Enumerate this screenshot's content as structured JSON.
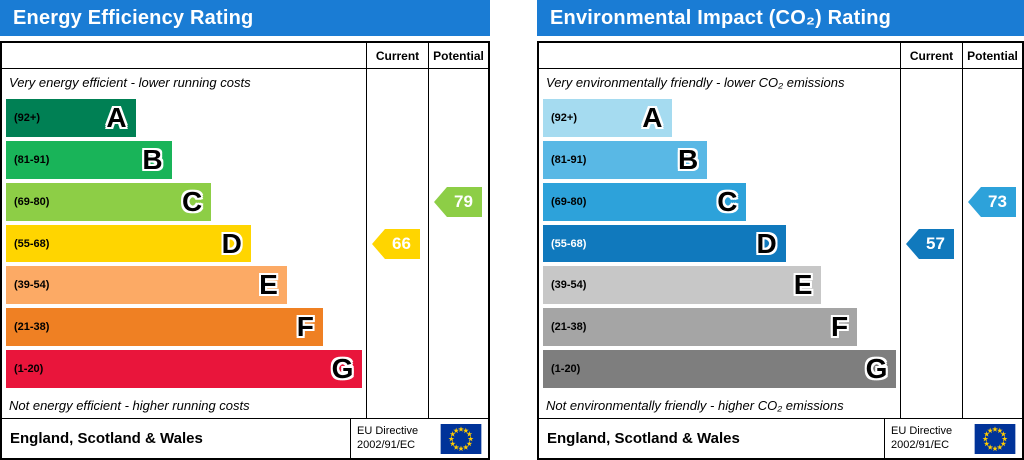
{
  "chart_data": [
    {
      "type": "bar",
      "title": "Energy Efficiency Rating",
      "categories": [
        "A (92+)",
        "B (81-91)",
        "C (69-80)",
        "D (55-68)",
        "E (39-54)",
        "F (21-38)",
        "G (1-20)"
      ],
      "series": [
        {
          "name": "Current",
          "value": 66,
          "band": "D"
        },
        {
          "name": "Potential",
          "value": 79,
          "band": "C"
        }
      ],
      "scale": [
        1,
        100
      ],
      "top_note": "Very energy efficient - lower running costs",
      "bottom_note": "Not energy efficient - higher running costs"
    },
    {
      "type": "bar",
      "title": "Environmental Impact (CO₂) Rating",
      "categories": [
        "A (92+)",
        "B (81-91)",
        "C (69-80)",
        "D (55-68)",
        "E (39-54)",
        "F (21-38)",
        "G (1-20)"
      ],
      "series": [
        {
          "name": "Current",
          "value": 57,
          "band": "D"
        },
        {
          "name": "Potential",
          "value": 73,
          "band": "C"
        }
      ],
      "scale": [
        1,
        100
      ],
      "top_note": "Very environmentally friendly - lower CO₂ emissions",
      "bottom_note": "Not environmentally friendly - higher CO₂ emissions"
    }
  ],
  "charts": [
    {
      "title": "Energy Efficiency Rating",
      "header_bg": "#1a7cd4",
      "columns": {
        "current": "Current",
        "potential": "Potential"
      },
      "top_note": "Very energy efficient - lower running costs",
      "bottom_note": "Not energy efficient - higher running costs",
      "bands": [
        {
          "letter": "A",
          "range": "(92+)",
          "color": "#008054",
          "width_pct": 36
        },
        {
          "letter": "B",
          "range": "(81-91)",
          "color": "#19b459",
          "width_pct": 46
        },
        {
          "letter": "C",
          "range": "(69-80)",
          "color": "#8dce46",
          "width_pct": 57
        },
        {
          "letter": "D",
          "range": "(55-68)",
          "color": "#ffd500",
          "width_pct": 68
        },
        {
          "letter": "E",
          "range": "(39-54)",
          "color": "#fcaa65",
          "width_pct": 78
        },
        {
          "letter": "F",
          "range": "(21-38)",
          "color": "#ef8023",
          "width_pct": 88
        },
        {
          "letter": "G",
          "range": "(1-20)",
          "color": "#e9153b",
          "width_pct": 99
        }
      ],
      "current": {
        "value": 66,
        "band": "D",
        "color": "#ffd500"
      },
      "potential": {
        "value": 79,
        "band": "C",
        "color": "#8dce46"
      },
      "footer": {
        "region": "England, Scotland & Wales",
        "directive_line1": "EU Directive",
        "directive_line2": "2002/91/EC"
      },
      "flag": {
        "bg": "#003399",
        "star": "#ffcc00"
      }
    },
    {
      "title": "Environmental Impact (CO₂) Rating",
      "header_bg": "#1a7cd4",
      "columns": {
        "current": "Current",
        "potential": "Potential"
      },
      "top_note": "Very environmentally friendly - lower CO₂ emissions",
      "bottom_note": "Not environmentally friendly - higher CO₂ emissions",
      "bands": [
        {
          "letter": "A",
          "range": "(92+)",
          "color": "#a5dbf0",
          "width_pct": 36
        },
        {
          "letter": "B",
          "range": "(81-91)",
          "color": "#59b8e5",
          "width_pct": 46
        },
        {
          "letter": "C",
          "range": "(69-80)",
          "color": "#2da2da",
          "width_pct": 57
        },
        {
          "letter": "D",
          "range": "(55-68)",
          "color": "#1079bd",
          "width_pct": 68,
          "range_color": "#ffffff"
        },
        {
          "letter": "E",
          "range": "(39-54)",
          "color": "#c7c7c7",
          "width_pct": 78
        },
        {
          "letter": "F",
          "range": "(21-38)",
          "color": "#a5a5a5",
          "width_pct": 88
        },
        {
          "letter": "G",
          "range": "(1-20)",
          "color": "#7e7e7e",
          "width_pct": 99
        }
      ],
      "current": {
        "value": 57,
        "band": "D",
        "color": "#1079bd"
      },
      "potential": {
        "value": 73,
        "band": "C",
        "color": "#2da2da"
      },
      "footer": {
        "region": "England, Scotland & Wales",
        "directive_line1": "EU Directive",
        "directive_line2": "2002/91/EC"
      },
      "flag": {
        "bg": "#003399",
        "star": "#ffcc00"
      }
    }
  ]
}
